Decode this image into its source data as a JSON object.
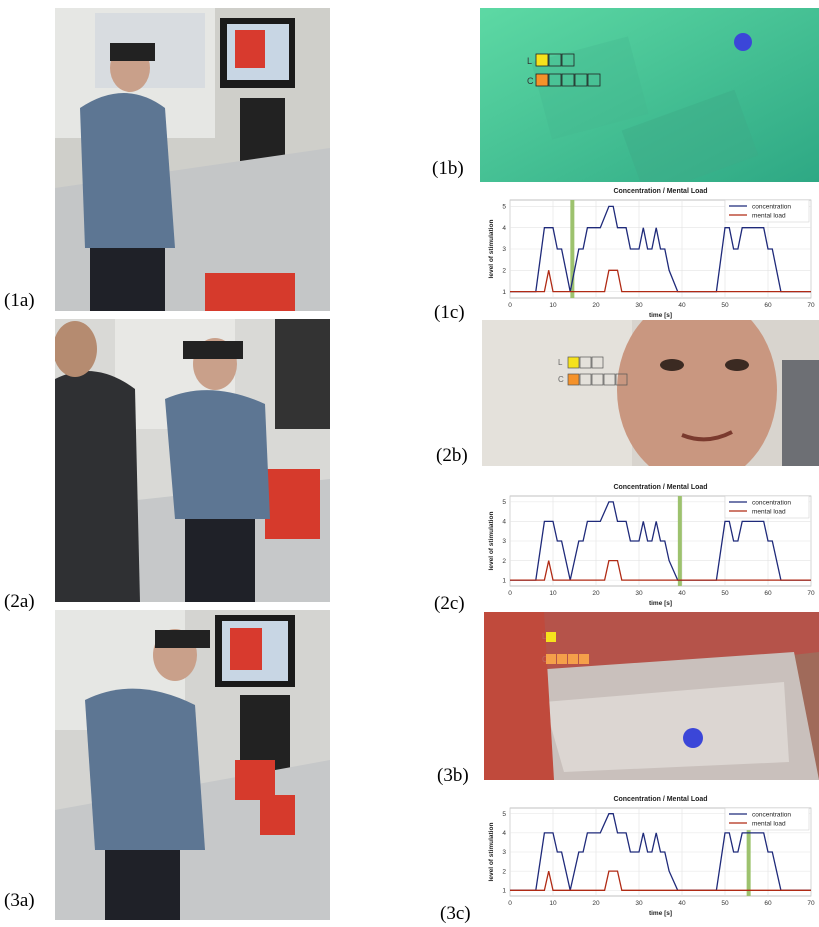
{
  "figure": {
    "panel_labels": {
      "p1a": "(1a)",
      "p1b": "(1b)",
      "p1c": "(1c)",
      "p2a": "(2a)",
      "p2b": "(2b)",
      "p2c": "(2c)",
      "p3a": "(3a)",
      "p3b": "(3b)",
      "p3c": "(3c)"
    },
    "overlay": {
      "row1_label": "L",
      "row2_label": "C"
    },
    "colors": {
      "concentration": "#1f2a7a",
      "mental_load": "#b02a14",
      "marker": "#9dc26e",
      "hud_yellow": "#f6e21c",
      "hud_orange": "#f5922a",
      "gaze_dot": "#3b46d8"
    }
  },
  "chart_data": [
    {
      "type": "line",
      "title": "Concentration / Mental Load",
      "xlabel": "time [s]",
      "ylabel": "level of stimulation",
      "xlim": [
        0,
        70
      ],
      "ylim": [
        0.7,
        5.3
      ],
      "xticks": [
        "0",
        "10",
        "20",
        "30",
        "40",
        "50",
        "60",
        "70"
      ],
      "yticks": [
        "1",
        "2",
        "3",
        "4",
        "5"
      ],
      "grid": true,
      "legend": "top-right",
      "series": [
        {
          "name": "concentration",
          "x": [
            0,
            6,
            8,
            10,
            11,
            12,
            13,
            14,
            16,
            17,
            18,
            20,
            21,
            23,
            24,
            25,
            26,
            27,
            28,
            29,
            30,
            31,
            32,
            33,
            34,
            35,
            36,
            37,
            39,
            40,
            47,
            48,
            50,
            51,
            52,
            53,
            54,
            57,
            59,
            60,
            61,
            63,
            64,
            70
          ],
          "y": [
            1,
            1,
            4,
            4,
            3,
            3,
            2,
            1,
            3,
            3,
            4,
            4,
            4,
            5,
            5,
            4,
            4,
            4,
            3,
            3,
            3,
            4,
            3,
            3,
            4,
            3,
            3,
            2,
            1,
            1,
            1,
            1,
            4,
            4,
            3,
            3,
            4,
            4,
            4,
            3,
            3,
            1,
            1,
            1
          ]
        },
        {
          "name": "mental load",
          "x": [
            0,
            8,
            9,
            10,
            22,
            23,
            25,
            26,
            70
          ],
          "y": [
            1,
            1,
            2,
            1,
            1,
            2,
            2,
            1,
            1
          ]
        }
      ],
      "marker_x": 14.5
    },
    {
      "type": "line",
      "title": "Concentration / Mental Load",
      "xlabel": "time [s]",
      "ylabel": "level of stimulation",
      "xlim": [
        0,
        70
      ],
      "ylim": [
        0.7,
        5.3
      ],
      "xticks": [
        "0",
        "10",
        "20",
        "30",
        "40",
        "50",
        "60",
        "70"
      ],
      "yticks": [
        "1",
        "2",
        "3",
        "4",
        "5"
      ],
      "grid": true,
      "legend": "top-right",
      "series": [
        {
          "name": "concentration",
          "x": [
            0,
            6,
            8,
            10,
            11,
            12,
            13,
            14,
            16,
            17,
            18,
            20,
            21,
            23,
            24,
            25,
            26,
            27,
            28,
            29,
            30,
            31,
            32,
            33,
            34,
            35,
            36,
            37,
            39,
            40,
            47,
            48,
            50,
            51,
            52,
            53,
            54,
            57,
            59,
            60,
            61,
            63,
            64,
            70
          ],
          "y": [
            1,
            1,
            4,
            4,
            3,
            3,
            2,
            1,
            3,
            3,
            4,
            4,
            4,
            5,
            5,
            4,
            4,
            4,
            3,
            3,
            3,
            4,
            3,
            3,
            4,
            3,
            3,
            2,
            1,
            1,
            1,
            1,
            4,
            4,
            3,
            3,
            4,
            4,
            4,
            3,
            3,
            1,
            1,
            1
          ]
        },
        {
          "name": "mental load",
          "x": [
            0,
            8,
            9,
            10,
            22,
            23,
            25,
            26,
            70
          ],
          "y": [
            1,
            1,
            2,
            1,
            1,
            2,
            2,
            1,
            1
          ]
        }
      ],
      "marker_x": 39.5
    },
    {
      "type": "line",
      "title": "Concentration / Mental Load",
      "xlabel": "time [s]",
      "ylabel": "level of stimulation",
      "xlim": [
        0,
        70
      ],
      "ylim": [
        0.7,
        5.3
      ],
      "xticks": [
        "0",
        "10",
        "20",
        "30",
        "40",
        "50",
        "60",
        "70"
      ],
      "yticks": [
        "1",
        "2",
        "3",
        "4",
        "5"
      ],
      "grid": true,
      "legend": "top-right",
      "series": [
        {
          "name": "concentration",
          "x": [
            0,
            6,
            8,
            10,
            11,
            12,
            13,
            14,
            16,
            17,
            18,
            20,
            21,
            23,
            24,
            25,
            26,
            27,
            28,
            29,
            30,
            31,
            32,
            33,
            34,
            35,
            36,
            37,
            39,
            40,
            47,
            48,
            50,
            51,
            52,
            53,
            54,
            57,
            59,
            60,
            61,
            63,
            64,
            70
          ],
          "y": [
            1,
            1,
            4,
            4,
            3,
            3,
            2,
            1,
            3,
            3,
            4,
            4,
            4,
            5,
            5,
            4,
            4,
            4,
            3,
            3,
            3,
            4,
            3,
            3,
            4,
            3,
            3,
            2,
            1,
            1,
            1,
            1,
            4,
            4,
            3,
            3,
            4,
            4,
            4,
            3,
            3,
            1,
            1,
            1
          ]
        },
        {
          "name": "mental load",
          "x": [
            0,
            8,
            9,
            10,
            22,
            23,
            25,
            26,
            70
          ],
          "y": [
            1,
            1,
            2,
            1,
            1,
            2,
            2,
            1,
            1
          ]
        }
      ],
      "marker_x": 55.5
    }
  ]
}
